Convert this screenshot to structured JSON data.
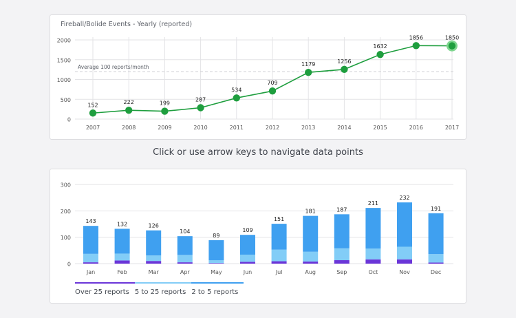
{
  "top_chart": {
    "title": "Fireball/Bolide Events - Yearly (reported)",
    "reference_label": "Average 100 reports/month",
    "reference_value": 1200,
    "line_color": "#1e9e3e",
    "highlight_color": "#7fd68f"
  },
  "navigation_hint": "Click or use arrow keys to navigate data points",
  "bottom_chart": {
    "legend": [
      {
        "label": "Over 25 reports",
        "color": "#6a35d8"
      },
      {
        "label": "5 to 25 reports",
        "color": "#82cdf7"
      },
      {
        "label": "2 to 5 reports",
        "color": "#3fa0f0"
      }
    ]
  },
  "chart_data": [
    {
      "type": "line",
      "title": "Fireball/Bolide Events - Yearly (reported)",
      "x": [
        "2007",
        "2008",
        "2009",
        "2010",
        "2011",
        "2012",
        "2013",
        "2014",
        "2015",
        "2016",
        "2017"
      ],
      "series": [
        {
          "values": [
            152,
            222,
            199,
            287,
            534,
            709,
            1179,
            1256,
            1632,
            1856,
            1850
          ]
        }
      ],
      "yticks": [
        "0",
        "500",
        "1000",
        "1500",
        "2000"
      ],
      "ylim": [
        0,
        2000
      ],
      "grid": true,
      "highlighted_index": 10
    },
    {
      "type": "bar",
      "stacked": true,
      "categories": [
        "Jan",
        "Feb",
        "Mar",
        "Apr",
        "May",
        "Jun",
        "Jul",
        "Aug",
        "Sep",
        "Oct",
        "Nov",
        "Dec"
      ],
      "totals": [
        143,
        132,
        126,
        104,
        89,
        109,
        151,
        181,
        187,
        211,
        232,
        191
      ],
      "series": [
        {
          "name": "Over 25 reports",
          "values": [
            5,
            12,
            10,
            5,
            2,
            7,
            9,
            8,
            13,
            16,
            16,
            4
          ]
        },
        {
          "name": "5 to 25 reports",
          "values": [
            32,
            26,
            21,
            28,
            11,
            27,
            44,
            37,
            45,
            41,
            48,
            32
          ]
        },
        {
          "name": "2 to 5 reports",
          "values": [
            106,
            94,
            95,
            71,
            76,
            75,
            98,
            136,
            129,
            154,
            168,
            155
          ]
        }
      ],
      "yticks": [
        "0",
        "100",
        "200",
        "300"
      ],
      "ylim": [
        0,
        300
      ],
      "grid": true,
      "legend_position": "bottom-left"
    }
  ]
}
